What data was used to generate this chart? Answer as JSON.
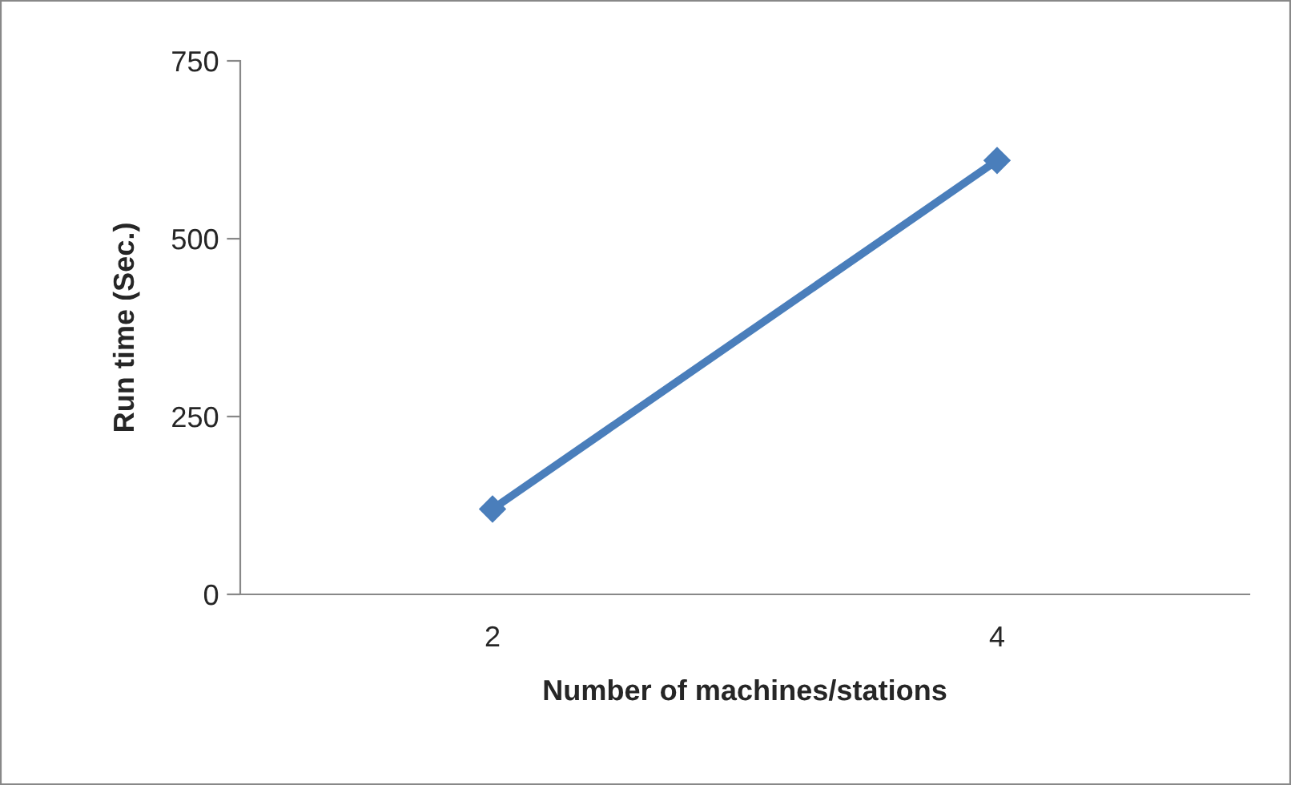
{
  "chart_data": {
    "type": "line",
    "xlabel": "Number of machines/stations",
    "ylabel": "Run time (Sec.)",
    "categories": [
      "2",
      "4"
    ],
    "series": [
      {
        "color": "#4a7ebb",
        "values": [
          120,
          610
        ]
      }
    ],
    "ylim": [
      0,
      750
    ],
    "yticks": [
      0,
      250,
      500,
      750
    ],
    "grid": false,
    "legend": false,
    "marker": "diamond",
    "line_style": "solid"
  }
}
